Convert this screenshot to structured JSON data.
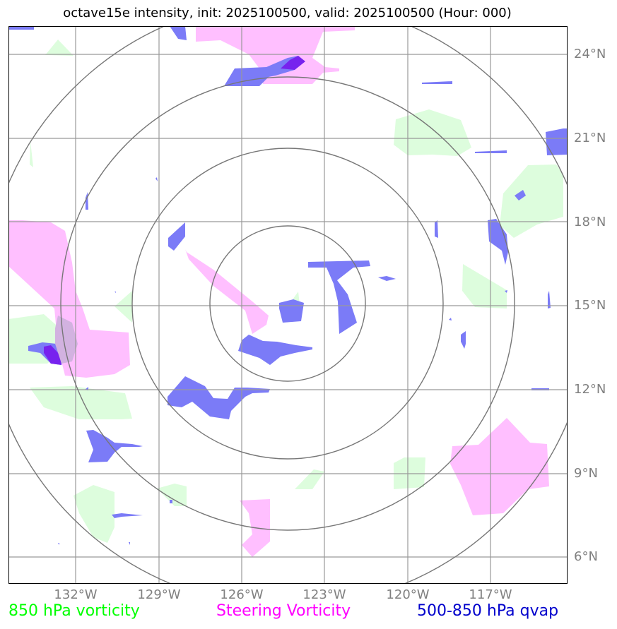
{
  "title": "octave15e intensity, init: 2025100500, valid: 2025100500 (Hour: 000)",
  "lon_labels": [
    "132°W",
    "129°W",
    "126°W",
    "123°W",
    "120°W",
    "117°W"
  ],
  "lat_labels": [
    "24°N",
    "21°N",
    "18°N",
    "15°N",
    "12°N",
    "9°N",
    "6°N"
  ],
  "legend": {
    "vorticity_850": "850 hPa vorticity",
    "steering": "Steering Vorticity",
    "qvap": "500-850 hPa qvap"
  },
  "colors": {
    "vorticity_850": "#00ff00",
    "steering": "#ff00ff",
    "qvap": "#0000cc",
    "green_fill": "#ddfddd",
    "pink_fill": "#ffbfff",
    "blue_fill": "#7b7bf7",
    "grid": "#999999",
    "rings": "#777777",
    "tick_text": "#808080"
  },
  "map_extent": {
    "lon_min": -134.5,
    "lon_max": -114.5,
    "lat_min": 4.9,
    "lat_max": 25.0
  },
  "storm_center": {
    "lon": -124.7,
    "lat": 15.0
  }
}
